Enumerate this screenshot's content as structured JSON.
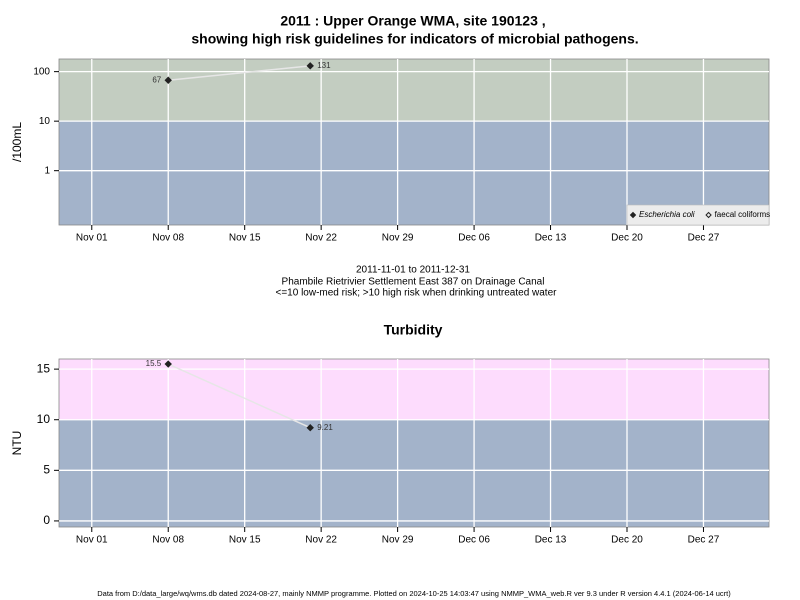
{
  "footer": "Data from D:/data_large/wq/wms.db dated 2024-08-27, mainly NMMP programme. Plotted on 2024-10-25 14:03:47 using NMMP_WMA_web.R ver 9.3 under R version 4.4.1 (2024-06-14 ucrt)",
  "chart_data": [
    {
      "type": "line",
      "title": "2011 : Upper Orange WMA, site 190123 ,",
      "subtitle": "showing high risk guidelines for indicators of microbial pathogens.",
      "notes": [
        "2011-11-01 to 2011-12-31",
        "Phambile Rietrivier Settlement East 387 on Drainage Canal",
        "<=10 low-med risk; >10 high risk when drinking untreated water"
      ],
      "ylabel": "/100mL",
      "log_scale": true,
      "xlim": [
        "2011-10-29",
        "2012-01-02"
      ],
      "xticks": [
        {
          "value": "2011-11-01",
          "label": "Nov 01"
        },
        {
          "value": "2011-11-08",
          "label": "Nov 08"
        },
        {
          "value": "2011-11-15",
          "label": "Nov 15"
        },
        {
          "value": "2011-11-22",
          "label": "Nov 22"
        },
        {
          "value": "2011-11-29",
          "label": "Nov 29"
        },
        {
          "value": "2011-12-06",
          "label": "Dec 06"
        },
        {
          "value": "2011-12-13",
          "label": "Dec 13"
        },
        {
          "value": "2011-12-20",
          "label": "Dec 20"
        },
        {
          "value": "2011-12-27",
          "label": "Dec 27"
        }
      ],
      "ylim": [
        0.08,
        180
      ],
      "yticks": [
        1,
        10,
        100
      ],
      "threshold": 10,
      "above_color": "#c3cdc1",
      "below_color": "#a3b3ca",
      "grid": true,
      "legend": "bottom-right",
      "series": [
        {
          "name": "Escherichia coli",
          "color": "#222222",
          "marker": "filled-diamond",
          "x": [
            "2011-11-08",
            "2011-11-21"
          ],
          "values": [
            67,
            131
          ]
        },
        {
          "name": "faecal coliforms",
          "color": "#222222",
          "marker": "open-diamond",
          "x": [],
          "values": []
        }
      ]
    },
    {
      "type": "line",
      "title": "Turbidity",
      "ylabel": "NTU",
      "log_scale": false,
      "xlim": [
        "2011-10-29",
        "2012-01-02"
      ],
      "xticks": [
        {
          "value": "2011-11-01",
          "label": "Nov 01"
        },
        {
          "value": "2011-11-08",
          "label": "Nov 08"
        },
        {
          "value": "2011-11-15",
          "label": "Nov 15"
        },
        {
          "value": "2011-11-22",
          "label": "Nov 22"
        },
        {
          "value": "2011-11-29",
          "label": "Nov 29"
        },
        {
          "value": "2011-12-06",
          "label": "Dec 06"
        },
        {
          "value": "2011-12-13",
          "label": "Dec 13"
        },
        {
          "value": "2011-12-20",
          "label": "Dec 20"
        },
        {
          "value": "2011-12-27",
          "label": "Dec 27"
        }
      ],
      "ylim": [
        -0.6,
        16
      ],
      "yticks": [
        0,
        5,
        10,
        15
      ],
      "threshold": 10,
      "above_color": "#fddcfd",
      "below_color": "#a3b3ca",
      "grid": true,
      "series": [
        {
          "name": "Turbidity",
          "color": "#222222",
          "marker": "filled-diamond",
          "x": [
            "2011-11-08",
            "2011-11-21"
          ],
          "values": [
            15.5,
            9.21
          ]
        }
      ]
    }
  ]
}
